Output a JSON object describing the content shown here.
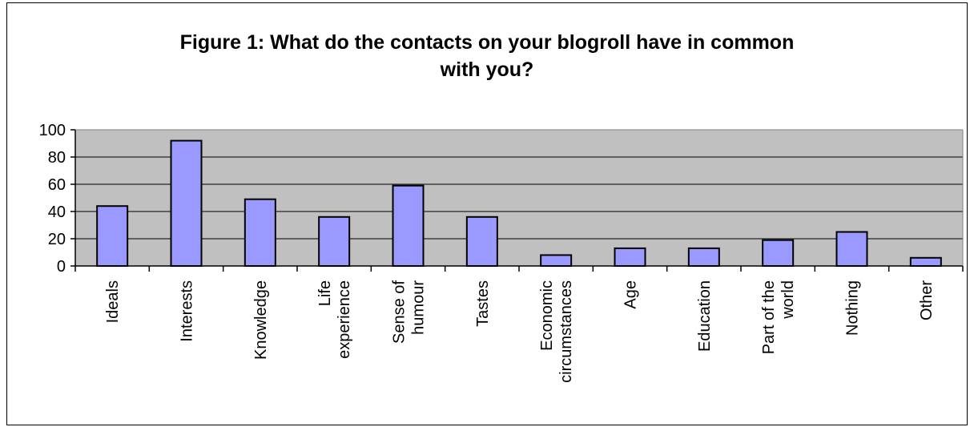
{
  "chart_data": {
    "type": "bar",
    "title_lines": [
      "Figure 1: What do the contacts on your blogroll have in common",
      "with you?"
    ],
    "categories": [
      [
        "Ideals"
      ],
      [
        "Interests"
      ],
      [
        "Knowledge"
      ],
      [
        "Life",
        "experience"
      ],
      [
        "Sense of",
        "humour"
      ],
      [
        "Tastes"
      ],
      [
        "Economic",
        "circumstances"
      ],
      [
        "Age"
      ],
      [
        "Education"
      ],
      [
        "Part of the",
        "world"
      ],
      [
        "Nothing"
      ],
      [
        "Other"
      ]
    ],
    "values": [
      44,
      92,
      49,
      36,
      59,
      36,
      8,
      13,
      13,
      19,
      25,
      6
    ],
    "ylim": [
      0,
      100
    ],
    "yticks": [
      "0",
      "20",
      "40",
      "60",
      "80",
      "100"
    ],
    "ytick_values": [
      0,
      20,
      40,
      60,
      80,
      100
    ],
    "grid": true,
    "colors": {
      "bar_fill": "#9999ff",
      "bar_stroke": "#000000",
      "plot_background": "#c0c0c0",
      "gridline": "#000000"
    }
  }
}
